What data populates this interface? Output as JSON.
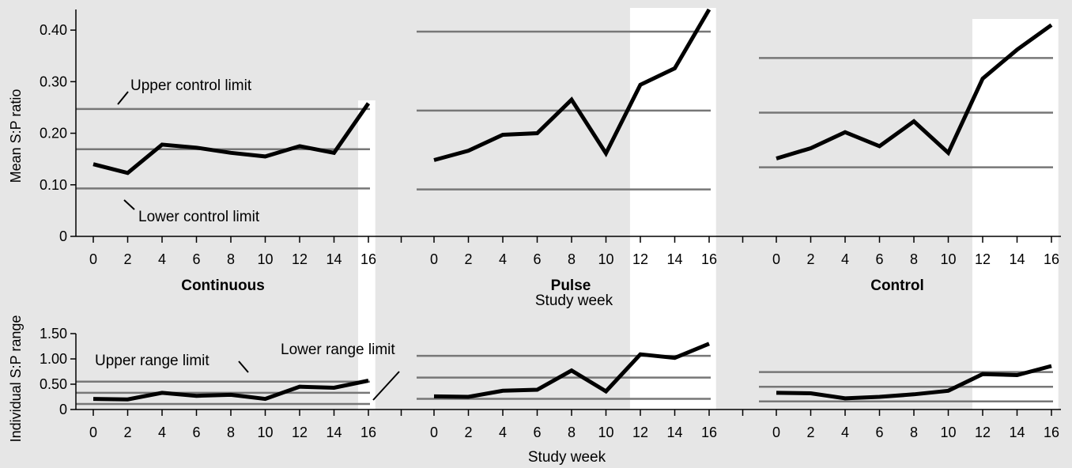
{
  "chart_data": [
    {
      "type": "line",
      "ylabel": "Mean S:P ratio",
      "xlabel": "Study week",
      "ylim": [
        0,
        0.44
      ],
      "yticks": [
        0,
        0.1,
        0.2,
        0.3,
        0.4
      ],
      "ytick_labels": [
        "0",
        "0.10",
        "0.20",
        "0.30",
        "0.40"
      ],
      "x": [
        0,
        2,
        4,
        6,
        8,
        10,
        12,
        14,
        16
      ],
      "annotations": [
        "Upper control limit",
        "Lower control limit"
      ],
      "panels": [
        {
          "name": "Continuous",
          "values": [
            0.14,
            0.123,
            0.178,
            0.172,
            0.162,
            0.155,
            0.175,
            0.162,
            0.258
          ],
          "limits": {
            "upper": 0.247,
            "center": 0.169,
            "lower": 0.093
          },
          "highlight_from_week": 16
        },
        {
          "name": "Pulse",
          "values": [
            0.148,
            0.166,
            0.197,
            0.2,
            0.265,
            0.161,
            0.294,
            0.326,
            0.44
          ],
          "limits": {
            "upper": 0.397,
            "center": 0.244,
            "lower": 0.091
          },
          "highlight_from_week": 12
        },
        {
          "name": "Control",
          "values": [
            0.151,
            0.171,
            0.202,
            0.175,
            0.223,
            0.162,
            0.306,
            0.362,
            0.41
          ],
          "limits": {
            "upper": 0.346,
            "center": 0.24,
            "lower": 0.134
          },
          "highlight_from_week": 12
        }
      ]
    },
    {
      "type": "line",
      "ylabel": "Individual S:P range",
      "xlabel": "Study week",
      "ylim": [
        0,
        1.5
      ],
      "yticks": [
        0,
        0.5,
        1.0,
        1.5
      ],
      "ytick_labels": [
        "0",
        "0.50",
        "1.00",
        "1.50"
      ],
      "x": [
        0,
        2,
        4,
        6,
        8,
        10,
        12,
        14,
        16
      ],
      "annotations": [
        "Upper range limit",
        "Lower range limit"
      ],
      "panels": [
        {
          "name": "Continuous",
          "values": [
            0.21,
            0.2,
            0.33,
            0.27,
            0.29,
            0.21,
            0.45,
            0.43,
            0.57
          ],
          "limits": {
            "upper": 0.55,
            "center": 0.33,
            "lower": 0.11
          }
        },
        {
          "name": "Pulse",
          "values": [
            0.26,
            0.25,
            0.37,
            0.39,
            0.77,
            0.36,
            1.09,
            1.02,
            1.3
          ],
          "limits": {
            "upper": 1.06,
            "center": 0.63,
            "lower": 0.21
          }
        },
        {
          "name": "Control",
          "values": [
            0.33,
            0.32,
            0.22,
            0.25,
            0.3,
            0.37,
            0.7,
            0.68,
            0.86
          ],
          "limits": {
            "upper": 0.74,
            "center": 0.45,
            "lower": 0.16
          }
        }
      ]
    }
  ]
}
